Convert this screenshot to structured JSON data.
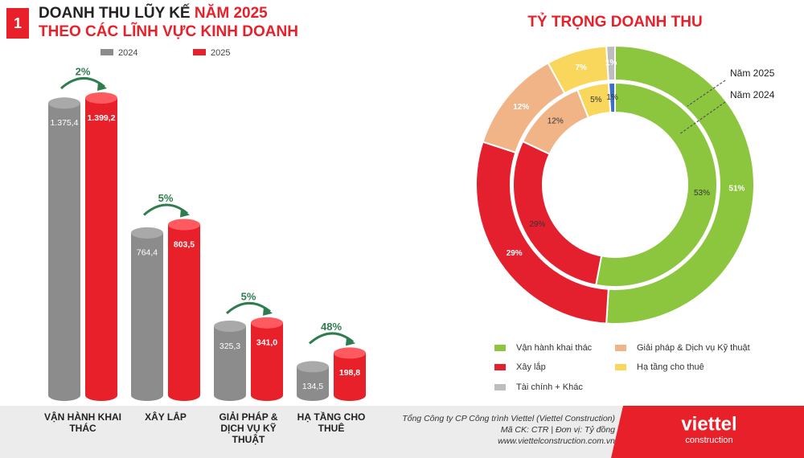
{
  "section": "1",
  "chart_data": [
    {
      "type": "bar",
      "title": [
        "DOANH THU LŨY KẾ",
        "NĂM 2025",
        "THEO CÁC LĨNH VỰC KINH DOANH"
      ],
      "categories": [
        "VẬN HÀNH KHAI THÁC",
        "XÂY LẮP",
        "GIẢI PHÁP & DỊCH VỤ KỸ THUẬT",
        "HẠ TẦNG CHO THUÊ"
      ],
      "series": [
        {
          "name": "2024",
          "color": "#8c8c8c",
          "values": [
            1375.4,
            764.4,
            325.3,
            134.5
          ],
          "value_labels": [
            "1.375,4",
            "764,4",
            "325,3",
            "134,5"
          ]
        },
        {
          "name": "2025",
          "color": "#e8202a",
          "values": [
            1399.2,
            803.5,
            341.0,
            198.8
          ],
          "value_labels": [
            "1.399,2",
            "803,5",
            "341,0",
            "198,8"
          ]
        }
      ],
      "growth": [
        "2%",
        "5%",
        "5%",
        "48%"
      ],
      "growth_color": "#2e7d4f"
    },
    {
      "type": "donut",
      "title": "TỶ TRỌNG DOANH THU",
      "categories": [
        "Vận hành khai thác",
        "Xây lắp",
        "Giải pháp & Dịch vụ Kỹ thuật",
        "Hạ tầng cho thuê",
        "Tài chính + Khác"
      ],
      "colors": [
        "#8cc63f",
        "#e5202e",
        "#f1b487",
        "#f9d65c",
        "#bdbdbd"
      ],
      "series": [
        {
          "name": "Năm 2025",
          "values": [
            51,
            29,
            12,
            7,
            1
          ],
          "value_labels": [
            "51%",
            "29%",
            "12%",
            "7%",
            "1%"
          ],
          "colors": [
            "#8cc63f",
            "#e5202e",
            "#f1b487",
            "#f9d65c",
            "#bdbdbd"
          ]
        },
        {
          "name": "Năm 2024",
          "values": [
            53,
            29,
            12,
            5,
            1
          ],
          "value_labels": [
            "53%",
            "29%",
            "12%",
            "5%",
            "1%"
          ],
          "colors": [
            "#8cc63f",
            "#e5202e",
            "#f1b487",
            "#f9d65c",
            "#3a6fc4"
          ]
        }
      ]
    }
  ],
  "footer": {
    "company": "Tổng Công ty CP Công trình Viettel (Viettel Construction)",
    "info": "Mã CK: CTR  |  Đơn vị: Tỷ đồng",
    "website": "www.viettelconstruction.com.vn",
    "logo": "viettel",
    "logo_sub": "construction"
  }
}
